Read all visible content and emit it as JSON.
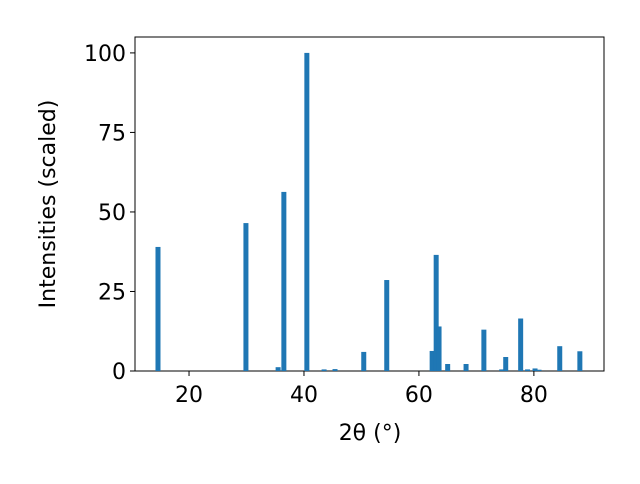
{
  "chart_data": {
    "type": "bar",
    "xlabel": "2θ (°)",
    "ylabel": "Intensities (scaled)",
    "color": "#1f77b4",
    "x": [
      14.6,
      29.9,
      35.5,
      36.5,
      40.5,
      43.5,
      45.4,
      50.4,
      54.4,
      62.3,
      63.0,
      63.5,
      65.0,
      68.2,
      71.3,
      74.4,
      75.1,
      77.7,
      78.9,
      80.2,
      80.9,
      84.5,
      88.0
    ],
    "values": [
      39.0,
      46.5,
      1.2,
      56.3,
      100,
      0.5,
      0.6,
      6.0,
      28.6,
      6.3,
      36.5,
      14,
      2.2,
      2.2,
      13,
      0.5,
      4.4,
      16.5,
      0.5,
      0.8,
      0.4,
      7.8,
      6.2
    ],
    "xlim": [
      10.6,
      92.2
    ],
    "ylim": [
      0,
      105
    ],
    "xticks": [
      20,
      40,
      60,
      80
    ],
    "yticks": [
      0,
      25,
      50,
      75,
      100
    ]
  }
}
